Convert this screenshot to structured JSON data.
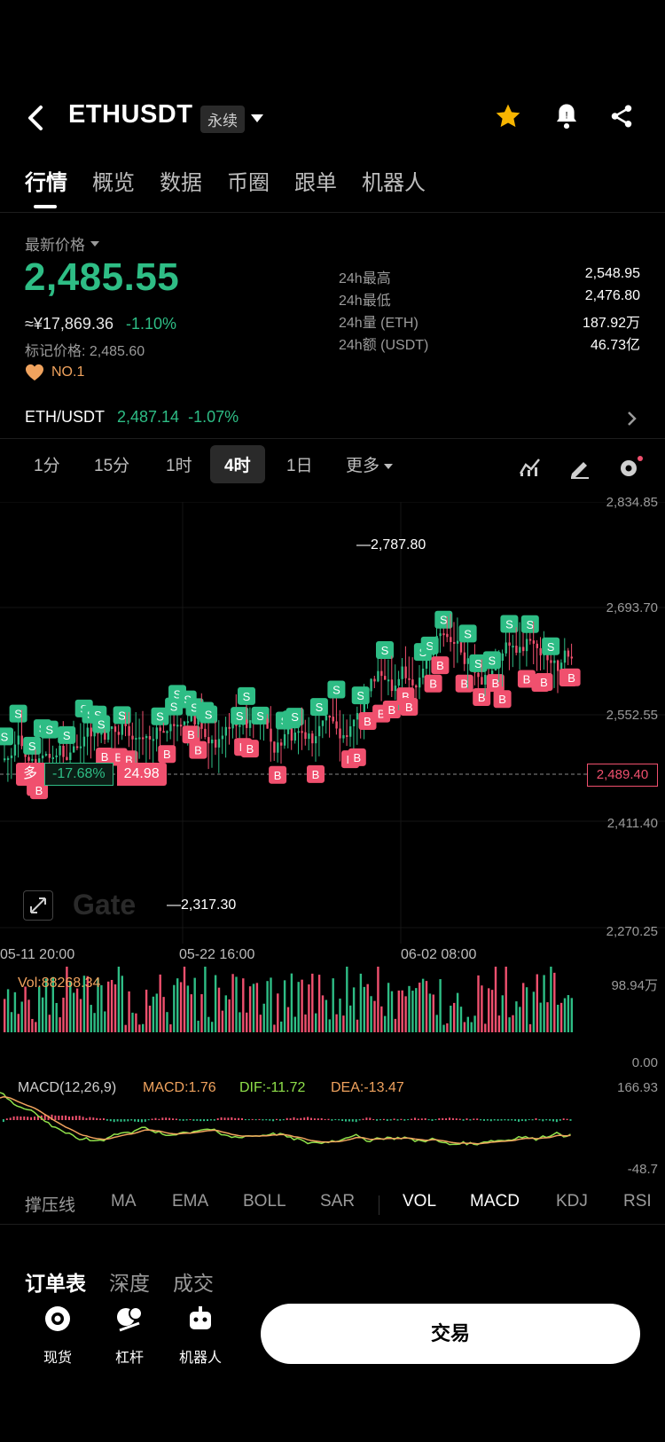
{
  "header": {
    "symbol": "ETHUSDT",
    "contract_type": "永续"
  },
  "tabs": [
    "行情",
    "概览",
    "数据",
    "币圈",
    "跟单",
    "机器人"
  ],
  "price": {
    "label": "最新价格",
    "last": "2,485.55",
    "cny": "≈¥17,869.36",
    "change_pct": "-1.10%",
    "mark_price": "标记价格: 2,485.60",
    "rank": "NO.1"
  },
  "stats": [
    {
      "key": "24h最高",
      "value": "2,548.95"
    },
    {
      "key": "24h最低",
      "value": "2,476.80"
    },
    {
      "key": "24h量 (ETH)",
      "value": "187.92万"
    },
    {
      "key": "24h额 (USDT)",
      "value": "46.73亿"
    }
  ],
  "spot": {
    "pair": "ETH/USDT",
    "price": "2,487.14",
    "change": "-1.07%"
  },
  "intervals": [
    "1分",
    "15分",
    "1时",
    "4时",
    "1日",
    "更多"
  ],
  "active_interval": "4时",
  "chart": {
    "y_axis_labels": [
      "2,834.85",
      "2,693.70",
      "2,552.55",
      "2,411.40",
      "2,270.25"
    ],
    "current_price": "2,489.40",
    "high_annotation": "2,787.80",
    "low_annotation": "2,317.30",
    "x_axis_labels": [
      "05-11 20:00",
      "05-22 16:00",
      "06-02 08:00"
    ],
    "position": {
      "side": "多",
      "pnl": "-17.68%",
      "amount": "24.98"
    },
    "watermark": "Gate"
  },
  "volume": {
    "label": "Vol:88268.34",
    "max": "98.94万",
    "min": "0.00"
  },
  "macd": {
    "label": "MACD(12,26,9)",
    "macd": "MACD:1.76",
    "dif": "DIF:-11.72",
    "dea": "DEA:-13.47",
    "max": "166.93",
    "min": "-48.7"
  },
  "indicators_main": [
    "撑压线",
    "MA",
    "EMA",
    "BOLL",
    "SAR"
  ],
  "indicators_sub": [
    "VOL",
    "MACD",
    "KDJ",
    "RSI"
  ],
  "book_tabs": [
    "订单表",
    "深度",
    "成交"
  ],
  "dock": [
    "现货",
    "杠杆",
    "机器人"
  ],
  "trade_button": "交易",
  "colors": {
    "up": "#2ebd85",
    "down": "#f0506e",
    "background": "#000000"
  }
}
